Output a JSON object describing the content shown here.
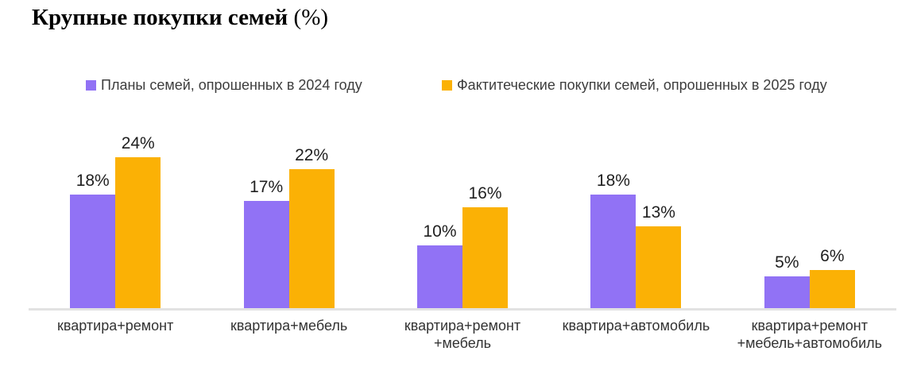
{
  "title": {
    "main": "Крупные покупки семей",
    "suffix": " (%)"
  },
  "legend": [
    {
      "label": "Планы семей, опрошенных в 2024 году",
      "color": "#9172F5"
    },
    {
      "label": "Фактитеческие покупки семей, опрошенных в 2025 году",
      "color": "#FBB105"
    }
  ],
  "chart_data": {
    "type": "bar",
    "title": "Крупные покупки семей (%)",
    "xlabel": "",
    "ylabel": "",
    "value_suffix": "%",
    "ylim": [
      0,
      30
    ],
    "grid": false,
    "legend_position": "top",
    "axis_line_color": "#e2e2e2",
    "categories": [
      {
        "label": "квартира+ремонт",
        "lines": [
          "квартира+ремонт"
        ]
      },
      {
        "label": "квартира+мебель",
        "lines": [
          "квартира+мебель"
        ]
      },
      {
        "label": "квартира+ремонт+мебель",
        "lines": [
          "квартира+ремонт",
          "+мебель"
        ]
      },
      {
        "label": "квартира+автомобиль",
        "lines": [
          "квартира+автомобиль"
        ]
      },
      {
        "label": "квартира+ремонт+мебель+автомобиль",
        "lines": [
          "квартира+ремонт",
          "+мебель+автомобиль"
        ]
      }
    ],
    "series": [
      {
        "name": "Планы семей, опрошенных в 2024 году",
        "color": "#9172F5",
        "values": [
          18,
          17,
          10,
          18,
          5
        ]
      },
      {
        "name": "Фактитеческие покупки семей, опрошенных в 2025 году",
        "color": "#FBB105",
        "values": [
          24,
          22,
          16,
          13,
          6
        ]
      }
    ]
  }
}
